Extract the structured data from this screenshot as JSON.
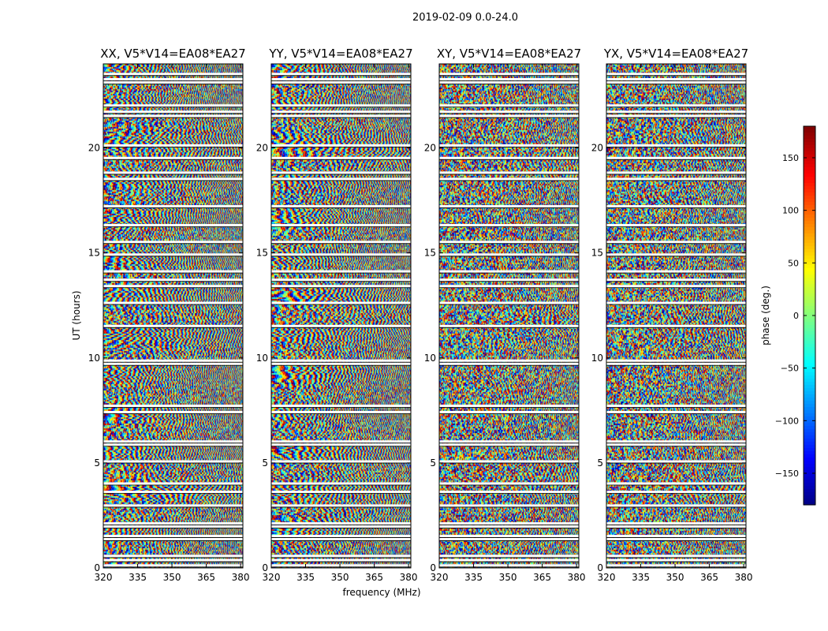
{
  "chart_data": {
    "type": "heatmap",
    "title": "2019-02-09 0.0-24.0",
    "xlabel": "frequency (MHz)",
    "ylabel": "UT (hours)",
    "xlim": [
      320,
      381
    ],
    "ylim": [
      0,
      24
    ],
    "x_ticks": [
      320,
      335,
      350,
      365,
      380
    ],
    "y_ticks": [
      0,
      5,
      10,
      15,
      20
    ],
    "panels": [
      {
        "title": "XX, V5*V14=EA08*EA27",
        "pattern": "fringe"
      },
      {
        "title": "YY, V5*V14=EA08*EA27",
        "pattern": "fringe"
      },
      {
        "title": "XY, V5*V14=EA08*EA27",
        "pattern": "noise"
      },
      {
        "title": "YX, V5*V14=EA08*EA27",
        "pattern": "noise"
      }
    ],
    "colorbar": {
      "label": "phase (deg.)",
      "colormap": "jet",
      "range": [
        -180,
        180
      ],
      "ticks": [
        -150,
        -100,
        -50,
        0,
        50,
        100,
        150
      ],
      "tick_labels": [
        "−150",
        "−100",
        "−50",
        "0",
        "50",
        "100",
        "150"
      ]
    },
    "gaps_hours": [
      0.1,
      0.35,
      0.55,
      1.35,
      1.5,
      1.95,
      2.1,
      2.95,
      3.6,
      4.0,
      5.05,
      5.85,
      6.0,
      7.4,
      7.7,
      9.7,
      9.85,
      11.5,
      12.6,
      13.4,
      13.7,
      14.1,
      14.9,
      15.5,
      16.3,
      17.2,
      18.5,
      18.8,
      19.5,
      20.1,
      21.5,
      21.7,
      22.0,
      23.1,
      23.25,
      23.5
    ]
  }
}
